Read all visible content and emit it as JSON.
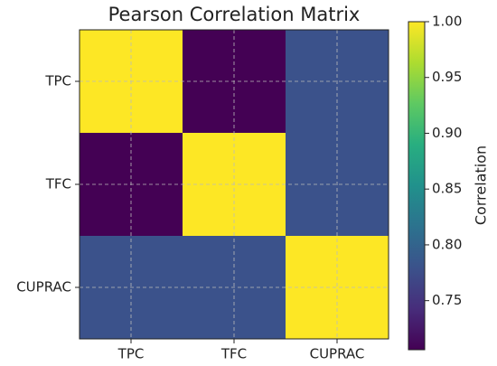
{
  "chart_data": {
    "type": "heatmap",
    "title": "Pearson Correlation Matrix",
    "categories": [
      "TPC",
      "TFC",
      "CUPRAC"
    ],
    "values": [
      [
        1.0,
        0.706,
        0.78
      ],
      [
        0.706,
        1.0,
        0.78
      ],
      [
        0.78,
        0.78,
        1.0
      ]
    ],
    "colormap": "viridis",
    "grid": true,
    "colorbar_label": "Correlation",
    "zlim": [
      0.706,
      1.0
    ],
    "zticks": [
      0.75,
      {
        "value": 0.8,
        "label": "0.80"
      },
      0.85,
      {
        "value": 0.9,
        "label": "0.90"
      },
      0.95,
      {
        "value": 1.0,
        "label": "1.00"
      }
    ]
  }
}
